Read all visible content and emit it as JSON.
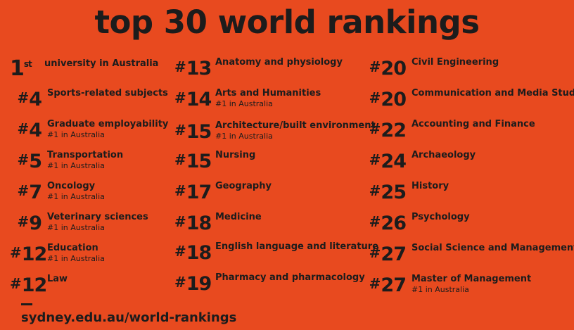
{
  "title": "top 30 world rankings",
  "hash": "#",
  "first": {
    "number": "1",
    "suffix": "st",
    "text": "university in Australia"
  },
  "columns": [
    {
      "items": [
        {
          "rank": "4",
          "subject": "Sports-related subjects",
          "note": ""
        },
        {
          "rank": "4",
          "subject": "Graduate employability",
          "note": "#1 in Australia"
        },
        {
          "rank": "5",
          "subject": "Transportation",
          "note": "#1 in Australia"
        },
        {
          "rank": "7",
          "subject": "Oncology",
          "note": "#1 in Australia"
        },
        {
          "rank": "9",
          "subject": "Veterinary sciences",
          "note": "#1 in Australia"
        },
        {
          "rank": "12",
          "subject": "Education",
          "note": "#1 in Australia"
        },
        {
          "rank": "12",
          "subject": "Law",
          "note": ""
        }
      ]
    },
    {
      "items": [
        {
          "rank": "13",
          "subject": "Anatomy and physiology",
          "note": ""
        },
        {
          "rank": "14",
          "subject": "Arts and Humanities",
          "note": "#1 in Australia"
        },
        {
          "rank": "15",
          "subject": "Architecture/built environment",
          "note": "#1 in Australia"
        },
        {
          "rank": "15",
          "subject": "Nursing",
          "note": ""
        },
        {
          "rank": "17",
          "subject": "Geography",
          "note": ""
        },
        {
          "rank": "18",
          "subject": "Medicine",
          "note": ""
        },
        {
          "rank": "18",
          "subject": "English language and literature",
          "note": ""
        },
        {
          "rank": "19",
          "subject": "Pharmacy and pharmacology",
          "note": ""
        }
      ]
    },
    {
      "items": [
        {
          "rank": "20",
          "subject": "Civil Engineering",
          "note": ""
        },
        {
          "rank": "20",
          "subject": "Communication and Media Studies",
          "note": ""
        },
        {
          "rank": "22",
          "subject": "Accounting and Finance",
          "note": ""
        },
        {
          "rank": "24",
          "subject": "Archaeology",
          "note": ""
        },
        {
          "rank": "25",
          "subject": "History",
          "note": ""
        },
        {
          "rank": "26",
          "subject": "Psychology",
          "note": ""
        },
        {
          "rank": "27",
          "subject": "Social Science and Management",
          "note": ""
        },
        {
          "rank": "27",
          "subject": "Master of Management",
          "note": "#1 in Australia"
        }
      ]
    }
  ],
  "footer_url": "sydney.edu.au/world-rankings",
  "colors": {
    "background": "#e84a1f",
    "text": "#1c1c1c"
  }
}
